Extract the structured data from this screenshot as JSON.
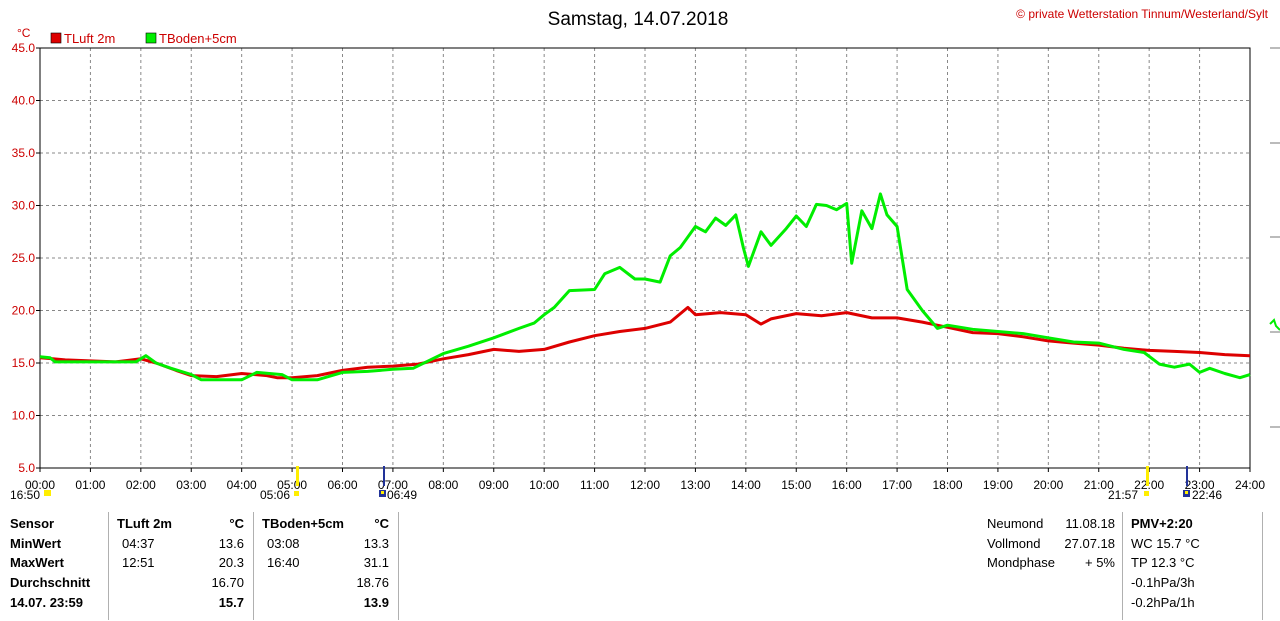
{
  "header": {
    "title": "Samstag, 14.07.2018",
    "copyright": "© private Wetterstation Tinnum/Westerland/Sylt"
  },
  "chart_data": {
    "type": "line",
    "unit": "°C",
    "ylim": [
      5,
      45
    ],
    "yticks": [
      "45.0",
      "40.0",
      "35.0",
      "30.0",
      "25.0",
      "20.0",
      "15.0",
      "10.0",
      "5.0"
    ],
    "xlim": [
      0,
      24
    ],
    "xticks": [
      "00:00",
      "01:00",
      "02:00",
      "03:00",
      "04:00",
      "05:00",
      "06:00",
      "07:00",
      "08:00",
      "09:00",
      "10:00",
      "11:00",
      "12:00",
      "13:00",
      "14:00",
      "15:00",
      "16:00",
      "17:00",
      "18:00",
      "19:00",
      "20:00",
      "21:00",
      "22:00",
      "23:00",
      "24:00"
    ],
    "grid": true,
    "legend": "top-left",
    "series": [
      {
        "name": "TLuft 2m",
        "color": "#dd0000",
        "x": [
          0,
          0.25,
          0.5,
          1,
          1.5,
          2,
          2.3,
          2.7,
          3,
          3.5,
          4,
          4.5,
          4.7,
          5,
          5.5,
          6,
          6.5,
          7,
          7.5,
          8,
          8.5,
          9,
          9.5,
          10,
          10.5,
          11,
          11.5,
          12,
          12.5,
          12.85,
          13,
          13.5,
          14,
          14.3,
          14.5,
          15,
          15.5,
          16,
          16.5,
          17,
          17.5,
          18,
          18.5,
          19,
          19.5,
          20,
          20.5,
          21,
          21.5,
          22,
          22.5,
          23,
          23.5,
          24
        ],
        "values": [
          15.5,
          15.4,
          15.3,
          15.2,
          15.1,
          15.4,
          15.0,
          14.3,
          13.8,
          13.7,
          14.0,
          13.8,
          13.6,
          13.6,
          13.8,
          14.3,
          14.6,
          14.7,
          14.9,
          15.4,
          15.8,
          16.3,
          16.1,
          16.3,
          17.0,
          17.6,
          18.0,
          18.3,
          18.9,
          20.3,
          19.6,
          19.8,
          19.6,
          18.7,
          19.2,
          19.7,
          19.5,
          19.8,
          19.3,
          19.3,
          18.9,
          18.4,
          17.9,
          17.8,
          17.5,
          17.1,
          16.9,
          16.7,
          16.4,
          16.2,
          16.1,
          16.0,
          15.8,
          15.7
        ]
      },
      {
        "name": "TBoden+5cm",
        "color": "#00ee00",
        "x": [
          0,
          0.2,
          0.3,
          1,
          1.9,
          2.1,
          2.3,
          2.6,
          3,
          3.2,
          4,
          4.3,
          4.8,
          5,
          5.5,
          6,
          6.5,
          7,
          7.4,
          8,
          8.5,
          9,
          9.5,
          9.8,
          10,
          10.2,
          10.5,
          11,
          11.2,
          11.5,
          11.8,
          12,
          12.3,
          12.5,
          12.7,
          13,
          13.2,
          13.4,
          13.6,
          13.8,
          13.95,
          14.05,
          14.3,
          14.5,
          14.8,
          15,
          15.2,
          15.4,
          15.6,
          15.8,
          16,
          16.1,
          16.3,
          16.5,
          16.67,
          16.8,
          17,
          17.2,
          17.5,
          17.8,
          18,
          18.5,
          19,
          19.5,
          20,
          20.5,
          21,
          21.5,
          21.9,
          22.2,
          22.5,
          22.8,
          23,
          23.2,
          23.5,
          23.8,
          24
        ],
        "values": [
          15.6,
          15.5,
          15.1,
          15.1,
          15.1,
          15.7,
          15.0,
          14.5,
          13.9,
          13.4,
          13.4,
          14.1,
          13.9,
          13.4,
          13.4,
          14.1,
          14.2,
          14.4,
          14.5,
          15.9,
          16.6,
          17.4,
          18.3,
          18.8,
          19.6,
          20.3,
          21.9,
          22.0,
          23.5,
          24.1,
          23.0,
          23.0,
          22.7,
          25.2,
          26.0,
          28.0,
          27.5,
          28.8,
          28.1,
          29.1,
          26.0,
          24.2,
          27.5,
          26.2,
          27.8,
          29.0,
          28.0,
          30.1,
          30.0,
          29.6,
          30.2,
          24.5,
          29.5,
          27.8,
          31.1,
          29.1,
          28.0,
          22.0,
          20.0,
          18.3,
          18.6,
          18.2,
          18.0,
          17.8,
          17.4,
          17.0,
          16.9,
          16.3,
          16.0,
          14.9,
          14.6,
          14.9,
          14.1,
          14.5,
          14.0,
          13.6,
          13.9
        ]
      }
    ],
    "sun_moon": {
      "moonset": "16:50",
      "sunrise": "05:06",
      "moonrise": "06:49",
      "sunset": "21:57",
      "moonset2": "22:46"
    }
  },
  "stats": {
    "sensor_label": "Sensor",
    "min_label": "MinWert",
    "max_label": "MaxWert",
    "avg_label": "Durchschnitt",
    "current_label": "14.07. 23:59",
    "col1": {
      "name": "TLuft 2m",
      "unit": "°C",
      "min_time": "04:37",
      "min": "13.6",
      "max_time": "12:51",
      "max": "20.3",
      "avg": "16.70",
      "current": "15.7"
    },
    "col2": {
      "name": "TBoden+5cm",
      "unit": "°C",
      "min_time": "03:08",
      "min": "13.3",
      "max_time": "16:40",
      "max": "31.1",
      "avg": "18.76",
      "current": "13.9"
    },
    "moon": {
      "new_label": "Neumond",
      "new_date": "11.08.18",
      "full_label": "Vollmond",
      "full_date": "27.07.18",
      "phase_label": "Mondphase",
      "phase_value": "+ 5%"
    },
    "pmv": {
      "title": "PMV+2:20",
      "wc": "WC 15.7 °C",
      "tp": "TP 12.3 °C",
      "p3h": "-0.1hPa/3h",
      "p1h": "-0.2hPa/1h"
    }
  }
}
